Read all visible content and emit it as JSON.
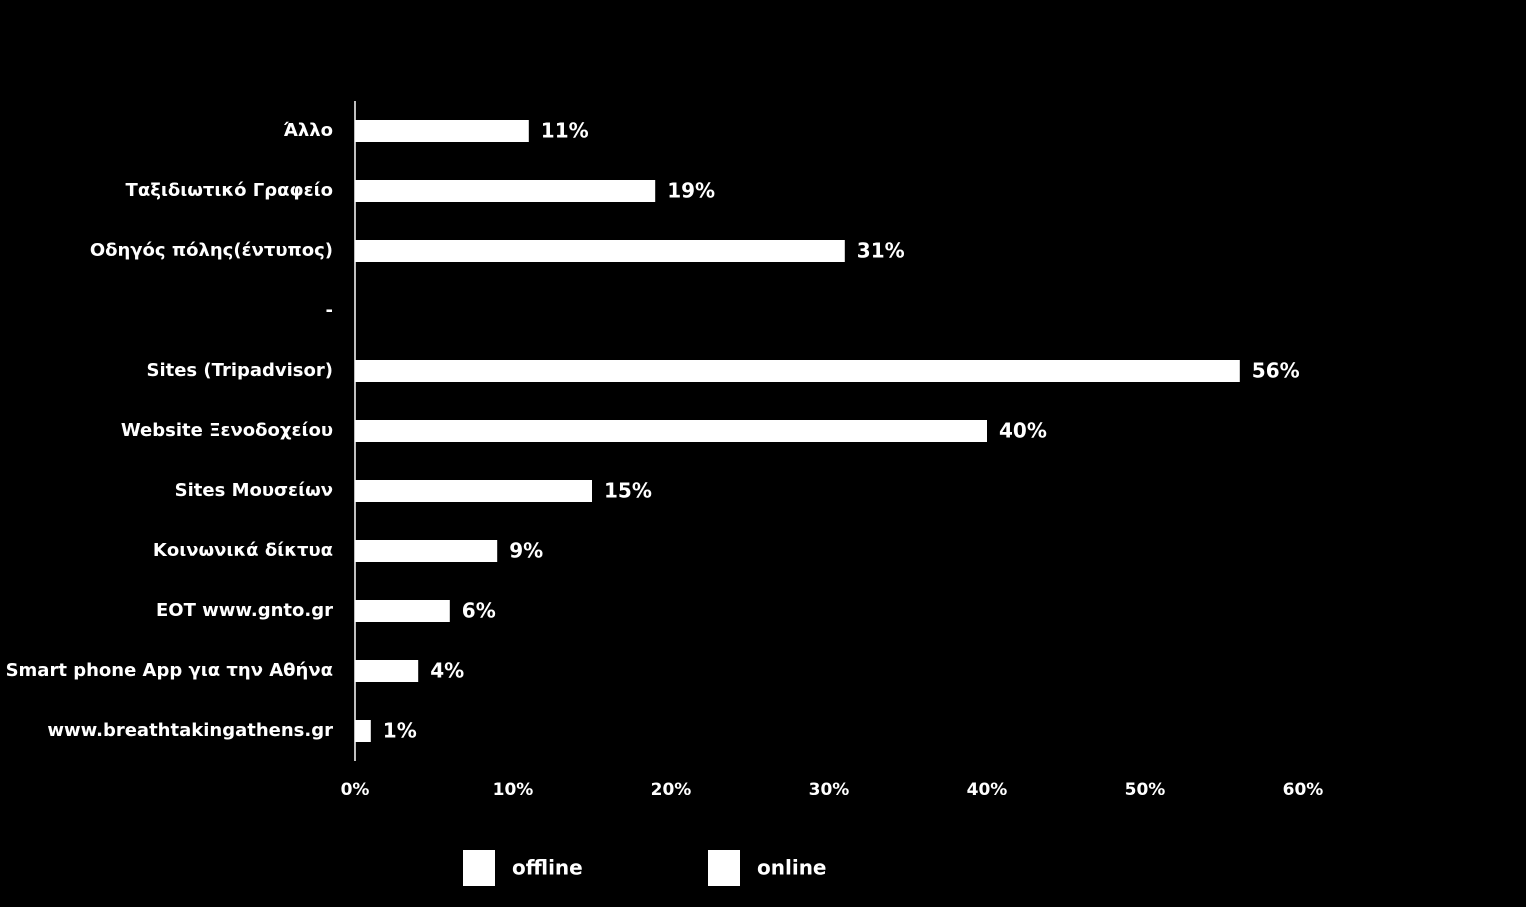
{
  "chart_data": {
    "type": "bar",
    "orientation": "horizontal",
    "categories": [
      "Άλλο",
      "Ταξιδιωτικό Γραφείο",
      "Οδηγός πόλης(έντυπος)",
      "-",
      "Sites (Tripadvisor)",
      "Website Ξενοδοχείου",
      "Sites Μουσείων",
      "Κοινωνικά δίκτυα",
      "ΕΟΤ www.gnto.gr",
      "Smart phone App για την Αθήνα",
      "www.breathtakingathens.gr"
    ],
    "series": [
      {
        "name": "offline",
        "color": "#ffffff",
        "values": [
          11,
          19,
          31,
          null,
          null,
          null,
          null,
          null,
          null,
          null,
          null
        ],
        "value_labels": [
          "11%",
          "19%",
          "31%",
          null,
          null,
          null,
          null,
          null,
          null,
          null,
          null
        ]
      },
      {
        "name": "online",
        "color": "#ffffff",
        "values": [
          null,
          null,
          null,
          null,
          56,
          40,
          15,
          9,
          6,
          4,
          1
        ],
        "value_labels": [
          null,
          null,
          null,
          null,
          "56%",
          "40%",
          "15%",
          "9%",
          "6%",
          "4%",
          "1%"
        ]
      }
    ],
    "xlim": [
      0,
      60
    ],
    "xticks": [
      {
        "value": 0,
        "label": "0%"
      },
      {
        "value": 10,
        "label": "10%"
      },
      {
        "value": 20,
        "label": "20%"
      },
      {
        "value": 30,
        "label": "30%"
      },
      {
        "value": 40,
        "label": "40%"
      },
      {
        "value": 50,
        "label": "50%"
      },
      {
        "value": 60,
        "label": "60%"
      }
    ],
    "background": "#000000"
  }
}
